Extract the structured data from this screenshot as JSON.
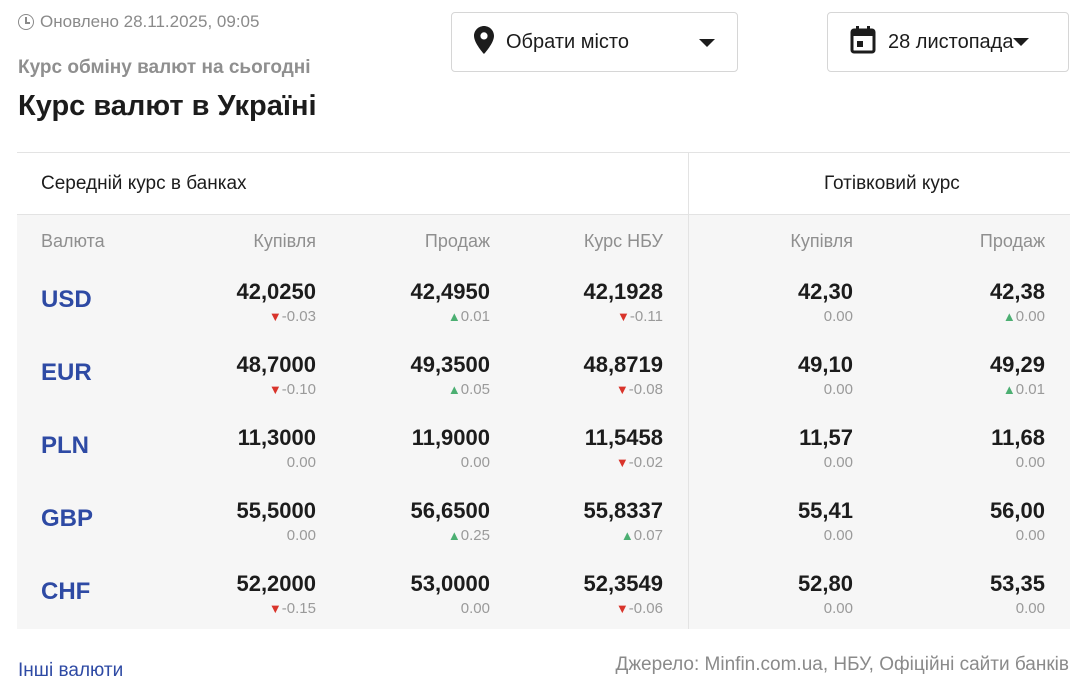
{
  "updated_text": "Оновлено 28.11.2025, 09:05",
  "subtitle": "Курс обміну валют на сьогодні",
  "title": "Курс валют в Україні",
  "city_select": {
    "label": "Обрати місто"
  },
  "date_select": {
    "label": "28 листопада"
  },
  "table": {
    "group_bank": "Середній курс в банках",
    "group_cash": "Готівковий курс",
    "columns": [
      "Валюта",
      "Купівля",
      "Продаж",
      "Курс НБУ",
      "Купівля",
      "Продаж"
    ],
    "rows": [
      {
        "code": "USD",
        "cells": [
          {
            "value": "42,0250",
            "change": "-0.03",
            "dir": "down"
          },
          {
            "value": "42,4950",
            "change": "0.01",
            "dir": "up"
          },
          {
            "value": "42,1928",
            "change": "-0.11",
            "dir": "down"
          },
          {
            "value": "42,30",
            "change": "0.00",
            "dir": "none"
          },
          {
            "value": "42,38",
            "change": "0.00",
            "dir": "up"
          }
        ]
      },
      {
        "code": "EUR",
        "cells": [
          {
            "value": "48,7000",
            "change": "-0.10",
            "dir": "down"
          },
          {
            "value": "49,3500",
            "change": "0.05",
            "dir": "up"
          },
          {
            "value": "48,8719",
            "change": "-0.08",
            "dir": "down"
          },
          {
            "value": "49,10",
            "change": "0.00",
            "dir": "none"
          },
          {
            "value": "49,29",
            "change": "0.01",
            "dir": "up"
          }
        ]
      },
      {
        "code": "PLN",
        "cells": [
          {
            "value": "11,3000",
            "change": "0.00",
            "dir": "none"
          },
          {
            "value": "11,9000",
            "change": "0.00",
            "dir": "none"
          },
          {
            "value": "11,5458",
            "change": "-0.02",
            "dir": "down"
          },
          {
            "value": "11,57",
            "change": "0.00",
            "dir": "none"
          },
          {
            "value": "11,68",
            "change": "0.00",
            "dir": "none"
          }
        ]
      },
      {
        "code": "GBP",
        "cells": [
          {
            "value": "55,5000",
            "change": "0.00",
            "dir": "none"
          },
          {
            "value": "56,6500",
            "change": "0.25",
            "dir": "up"
          },
          {
            "value": "55,8337",
            "change": "0.07",
            "dir": "up"
          },
          {
            "value": "55,41",
            "change": "0.00",
            "dir": "none"
          },
          {
            "value": "56,00",
            "change": "0.00",
            "dir": "none"
          }
        ]
      },
      {
        "code": "CHF",
        "cells": [
          {
            "value": "52,2000",
            "change": "-0.15",
            "dir": "down"
          },
          {
            "value": "53,0000",
            "change": "0.00",
            "dir": "none"
          },
          {
            "value": "52,3549",
            "change": "-0.06",
            "dir": "down"
          },
          {
            "value": "52,80",
            "change": "0.00",
            "dir": "none"
          },
          {
            "value": "53,35",
            "change": "0.00",
            "dir": "none"
          }
        ]
      }
    ]
  },
  "footer": {
    "other_link": "Інші валюти",
    "source": "Джерело: Minfin.com.ua, НБУ, Офіційні сайти банків"
  },
  "colors": {
    "accent": "#2e4aa4",
    "down": "#d9342b",
    "up": "#4caf72",
    "muted": "#8f8f8f",
    "row_bg": "#f6f6f6"
  },
  "icons": {
    "clock": "clock-icon",
    "location": "location-pin-icon",
    "calendar": "calendar-icon",
    "caret": "caret-down-icon"
  }
}
